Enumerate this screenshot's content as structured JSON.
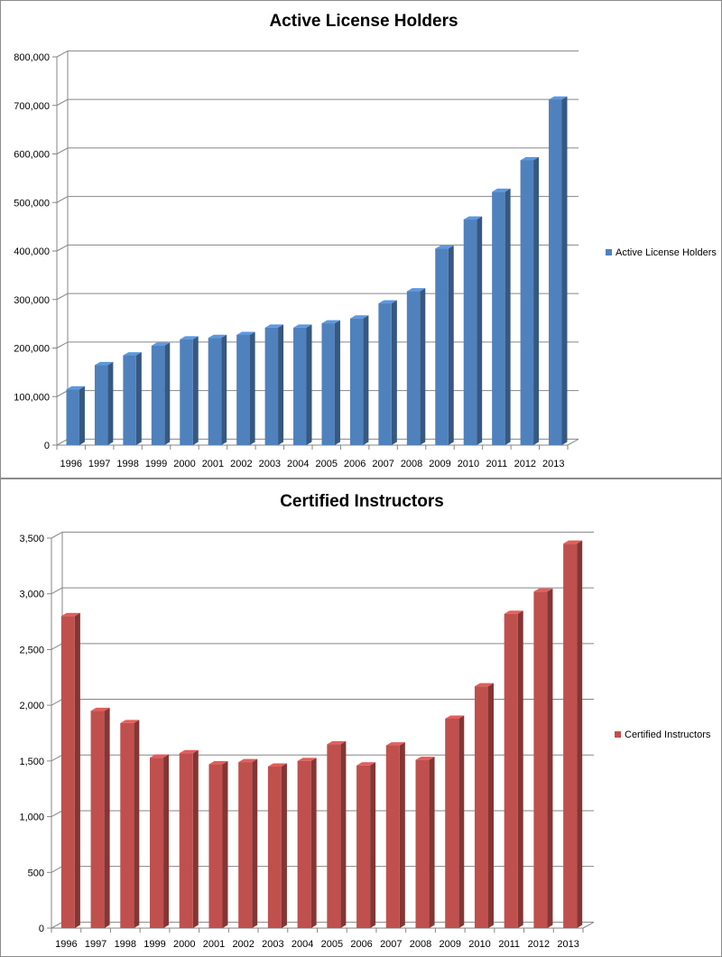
{
  "chart_data": [
    {
      "type": "bar",
      "title": "Active License Holders",
      "xlabel": "",
      "ylabel": "",
      "ylim": [
        0,
        800000
      ],
      "y_ticks": [
        "0",
        "100,000",
        "200,000",
        "300,000",
        "400,000",
        "500,000",
        "600,000",
        "700,000",
        "800,000"
      ],
      "categories": [
        "1996",
        "1997",
        "1998",
        "1999",
        "2000",
        "2001",
        "2002",
        "2003",
        "2004",
        "2005",
        "2006",
        "2007",
        "2008",
        "2009",
        "2010",
        "2011",
        "2012",
        "2013"
      ],
      "series": [
        {
          "name": "Active License Holders",
          "color": "#4f81bd",
          "values": [
            115000,
            165000,
            185000,
            205000,
            218000,
            221000,
            227000,
            242000,
            242000,
            251000,
            261000,
            292000,
            317000,
            405000,
            465000,
            522000,
            587000,
            712000
          ]
        }
      ],
      "legend": "right",
      "grid": true
    },
    {
      "type": "bar",
      "title": "Certified Instructors",
      "xlabel": "",
      "ylabel": "",
      "ylim": [
        0,
        3500
      ],
      "y_ticks": [
        "0",
        "500",
        "1,000",
        "1,500",
        "2,000",
        "2,500",
        "3,000",
        "3,500"
      ],
      "categories": [
        "1996",
        "1997",
        "1998",
        "1999",
        "2000",
        "2001",
        "2002",
        "2003",
        "2004",
        "2005",
        "2006",
        "2007",
        "2008",
        "2009",
        "2010",
        "2011",
        "2012",
        "2013"
      ],
      "series": [
        {
          "name": "Certified Instructors",
          "color": "#c0504d",
          "values": [
            2800,
            1950,
            1840,
            1530,
            1570,
            1470,
            1490,
            1450,
            1500,
            1650,
            1460,
            1640,
            1510,
            1880,
            2170,
            2820,
            3020,
            3450
          ]
        }
      ],
      "legend": "right",
      "grid": true
    }
  ]
}
